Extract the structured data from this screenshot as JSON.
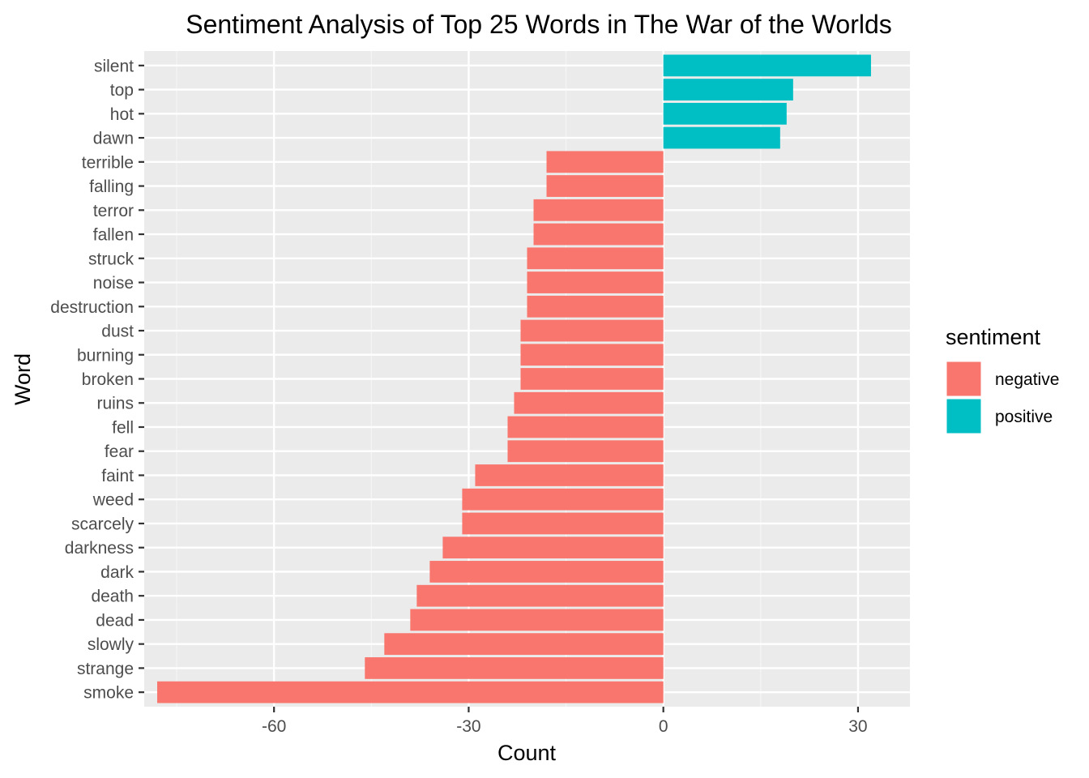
{
  "chart_data": {
    "type": "bar",
    "orientation": "horizontal",
    "title": "Sentiment Analysis of Top 25 Words in The War of the Worlds",
    "xlabel": "Count",
    "ylabel": "Word",
    "xlim": [
      -80,
      38
    ],
    "x_ticks": [
      -60,
      -30,
      0,
      30
    ],
    "x_tick_labels": [
      "-60",
      "-30",
      "0",
      "30"
    ],
    "grid": true,
    "legend": {
      "title": "sentiment",
      "placement": "right",
      "entries": [
        {
          "label": "negative",
          "color": "#F8766D"
        },
        {
          "label": "positive",
          "color": "#00BFC4"
        }
      ]
    },
    "bars": [
      {
        "word": "silent",
        "value": 32,
        "sentiment": "positive"
      },
      {
        "word": "top",
        "value": 20,
        "sentiment": "positive"
      },
      {
        "word": "hot",
        "value": 19,
        "sentiment": "positive"
      },
      {
        "word": "dawn",
        "value": 18,
        "sentiment": "positive"
      },
      {
        "word": "terrible",
        "value": -18,
        "sentiment": "negative"
      },
      {
        "word": "falling",
        "value": -18,
        "sentiment": "negative"
      },
      {
        "word": "terror",
        "value": -20,
        "sentiment": "negative"
      },
      {
        "word": "fallen",
        "value": -20,
        "sentiment": "negative"
      },
      {
        "word": "struck",
        "value": -21,
        "sentiment": "negative"
      },
      {
        "word": "noise",
        "value": -21,
        "sentiment": "negative"
      },
      {
        "word": "destruction",
        "value": -21,
        "sentiment": "negative"
      },
      {
        "word": "dust",
        "value": -22,
        "sentiment": "negative"
      },
      {
        "word": "burning",
        "value": -22,
        "sentiment": "negative"
      },
      {
        "word": "broken",
        "value": -22,
        "sentiment": "negative"
      },
      {
        "word": "ruins",
        "value": -23,
        "sentiment": "negative"
      },
      {
        "word": "fell",
        "value": -24,
        "sentiment": "negative"
      },
      {
        "word": "fear",
        "value": -24,
        "sentiment": "negative"
      },
      {
        "word": "faint",
        "value": -29,
        "sentiment": "negative"
      },
      {
        "word": "weed",
        "value": -31,
        "sentiment": "negative"
      },
      {
        "word": "scarcely",
        "value": -31,
        "sentiment": "negative"
      },
      {
        "word": "darkness",
        "value": -34,
        "sentiment": "negative"
      },
      {
        "word": "dark",
        "value": -36,
        "sentiment": "negative"
      },
      {
        "word": "death",
        "value": -38,
        "sentiment": "negative"
      },
      {
        "word": "dead",
        "value": -39,
        "sentiment": "negative"
      },
      {
        "word": "slowly",
        "value": -43,
        "sentiment": "negative"
      },
      {
        "word": "strange",
        "value": -46,
        "sentiment": "negative"
      },
      {
        "word": "smoke",
        "value": -78,
        "sentiment": "negative"
      }
    ],
    "colors": {
      "panel_background": "#EBEBEB",
      "grid_major": "#FFFFFF",
      "grid_minor": "#F5F5F5",
      "tick_color": "#333333"
    }
  }
}
